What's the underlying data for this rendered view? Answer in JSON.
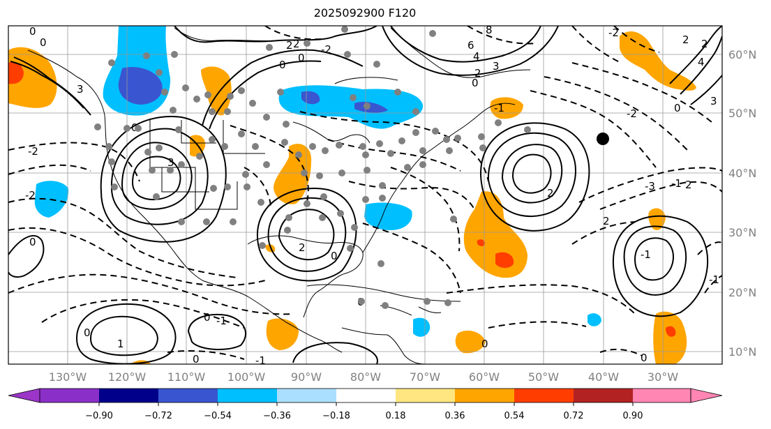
{
  "title": "2025092900 F120",
  "longitude_labels": [
    "130°W",
    "120°W",
    "110°W",
    "100°W",
    "90°W",
    "80°W",
    "70°W",
    "60°W",
    "50°W",
    "40°W",
    "30°W"
  ],
  "latitude_labels": [
    "60°N",
    "50°N",
    "40°N",
    "30°N",
    "20°N",
    "10°N"
  ],
  "colorbar": {
    "ticks": [
      "−0.90",
      "−0.72",
      "−0.54",
      "−0.36",
      "−0.18",
      "0.18",
      "0.36",
      "0.54",
      "0.72",
      "0.90"
    ],
    "under_color": "#9b36c9",
    "over_color": "#ff85b3",
    "colors": [
      "#8b2fc9",
      "#00008b",
      "#3a55d0",
      "#00bfff",
      "#aadfff",
      "#ffffff",
      "#ffe680",
      "#ffa500",
      "#ff3d00",
      "#b22222"
    ]
  },
  "contour_labels": [
    "0",
    "0",
    "3",
    "2",
    "0",
    "-2",
    "0",
    "2",
    "8",
    "6",
    "4",
    "3",
    "2",
    "0",
    "-1",
    "3",
    "3",
    "-2",
    "0",
    "2",
    "-2",
    "4",
    "2",
    "-3",
    "2",
    "-2",
    "0",
    "-2",
    "2",
    "2",
    "-1",
    "0",
    "0",
    "-1",
    "1",
    "0",
    "-1",
    "0",
    "-1",
    "0",
    "2",
    "-1",
    "0",
    "0",
    "0"
  ],
  "shading_colors": {
    "orange": "#ffa500",
    "red": "#ff3d00",
    "lightblue": "#00bfff",
    "blue": "#3a55d0"
  },
  "marker_colors": {
    "station": "#808080",
    "highlight": "#000000"
  }
}
